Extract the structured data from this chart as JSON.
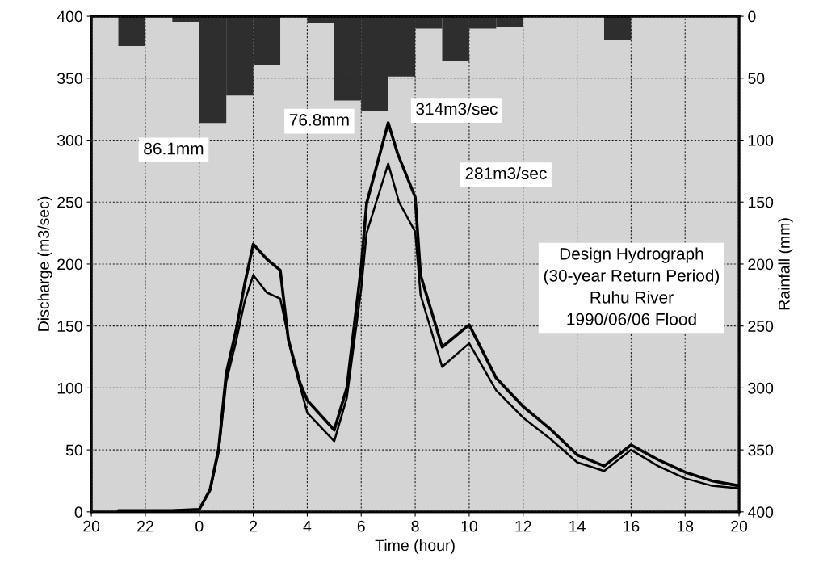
{
  "chart_data": {
    "type": "line",
    "xlabel": "Time (hour)",
    "ylabel": "Discharge (m3/sec)",
    "y2label": "Rainfall (mm)",
    "xlim": [
      "1990-06-05T20:00",
      "1990-06-06T20:00"
    ],
    "xticks": [
      {
        "value": "1990-06-05T20:00",
        "label": "20"
      },
      {
        "value": "1990-06-05T22:00",
        "label": "22"
      },
      {
        "value": "1990-06-06T00:00",
        "label": "0"
      },
      {
        "value": "1990-06-06T02:00",
        "label": "2"
      },
      {
        "value": "1990-06-06T04:00",
        "label": "4"
      },
      {
        "value": "1990-06-06T06:00",
        "label": "6"
      },
      {
        "value": "1990-06-06T08:00",
        "label": "8"
      },
      {
        "value": "1990-06-06T10:00",
        "label": "10"
      },
      {
        "value": "1990-06-06T12:00",
        "label": "12"
      },
      {
        "value": "1990-06-06T14:00",
        "label": "14"
      },
      {
        "value": "1990-06-06T16:00",
        "label": "16"
      },
      {
        "value": "1990-06-06T18:00",
        "label": "18"
      },
      {
        "value": "1990-06-06T20:00",
        "label": "20"
      }
    ],
    "ylim": [
      0,
      400
    ],
    "yticks": [
      0,
      50,
      100,
      150,
      200,
      250,
      300,
      350,
      400
    ],
    "y2lim": [
      400,
      0
    ],
    "y2ticks": [
      0,
      50,
      100,
      150,
      200,
      250,
      300,
      350,
      400
    ],
    "grid": true,
    "legend": false,
    "marker": "none",
    "line_style": "solid",
    "series": [
      {
        "type": "bar",
        "axis": "y2",
        "color": "#2e2e2e",
        "x": [
          "1990-06-05T21:30",
          "1990-06-05T23:30",
          "1990-06-06T00:30",
          "1990-06-06T01:30",
          "1990-06-06T02:30",
          "1990-06-06T04:30",
          "1990-06-06T05:30",
          "1990-06-06T06:30",
          "1990-06-06T07:30",
          "1990-06-06T08:30",
          "1990-06-06T09:30",
          "1990-06-06T10:30",
          "1990-06-06T11:30",
          "1990-06-06T15:30"
        ],
        "values": [
          24,
          4.5,
          86.1,
          64,
          39,
          5.6,
          68,
          76.8,
          48.6,
          10,
          36,
          10,
          9,
          19.5
        ]
      },
      {
        "color": "#000000",
        "x": [
          "1990-06-05T21:00",
          "1990-06-05T22:00",
          "1990-06-05T23:00",
          "1990-06-06T00:00",
          "1990-06-06T00:24",
          "1990-06-06T00:43",
          "1990-06-06T01:00",
          "1990-06-06T01:22",
          "1990-06-06T01:41",
          "1990-06-06T02:00",
          "1990-06-06T02:30",
          "1990-06-06T03:00",
          "1990-06-06T03:18",
          "1990-06-06T03:44",
          "1990-06-06T04:00",
          "1990-06-06T05:00",
          "1990-06-06T05:28",
          "1990-06-06T06:00",
          "1990-06-06T06:12",
          "1990-06-06T07:00",
          "1990-06-06T07:21",
          "1990-06-06T08:00",
          "1990-06-06T08:12",
          "1990-06-06T09:00",
          "1990-06-06T10:00",
          "1990-06-06T11:00",
          "1990-06-06T12:00",
          "1990-06-06T13:00",
          "1990-06-06T14:00",
          "1990-06-06T15:00",
          "1990-06-06T16:00",
          "1990-06-06T17:00",
          "1990-06-06T18:00",
          "1990-06-06T19:00",
          "1990-06-06T20:00"
        ],
        "values": [
          1,
          1,
          1,
          2,
          18,
          51,
          112,
          147,
          184,
          216,
          204,
          195,
          139,
          104,
          90,
          66,
          100,
          198,
          249,
          314,
          289,
          254,
          191,
          133,
          151,
          108,
          85,
          67,
          46,
          37,
          54,
          42,
          32,
          25,
          21
        ]
      },
      {
        "color": "#000000",
        "x": [
          "1990-06-05T21:00",
          "1990-06-05T22:00",
          "1990-06-05T23:00",
          "1990-06-06T00:00",
          "1990-06-06T00:24",
          "1990-06-06T00:43",
          "1990-06-06T01:00",
          "1990-06-06T01:22",
          "1990-06-06T01:41",
          "1990-06-06T02:00",
          "1990-06-06T02:30",
          "1990-06-06T03:00",
          "1990-06-06T03:30",
          "1990-06-06T04:00",
          "1990-06-06T05:00",
          "1990-06-06T05:28",
          "1990-06-06T06:00",
          "1990-06-06T06:12",
          "1990-06-06T07:00",
          "1990-06-06T07:24",
          "1990-06-06T08:00",
          "1990-06-06T08:12",
          "1990-06-06T09:00",
          "1990-06-06T10:00",
          "1990-06-06T11:00",
          "1990-06-06T12:00",
          "1990-06-06T13:00",
          "1990-06-06T14:00",
          "1990-06-06T15:00",
          "1990-06-06T16:00",
          "1990-06-06T17:00",
          "1990-06-06T18:00",
          "1990-06-06T19:00",
          "1990-06-06T20:00"
        ],
        "values": [
          1,
          1,
          1,
          2,
          17,
          48,
          105,
          138,
          170,
          191,
          177,
          172,
          120,
          80,
          57,
          92,
          180,
          225,
          281,
          250,
          226,
          175,
          117,
          136,
          98,
          76,
          59,
          40,
          33,
          50,
          37,
          27,
          21,
          19
        ]
      }
    ],
    "annotations": [
      "86.1mm",
      "76.8mm",
      "314m3/sec",
      "281m3/sec",
      "Design Hydrograph\n(30-year Return Period)\nRuhu River\n1990/06/06 Flood"
    ]
  }
}
